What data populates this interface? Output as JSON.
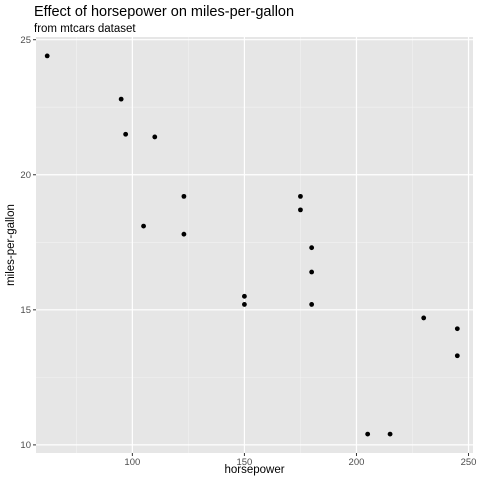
{
  "chart_data": {
    "type": "scatter",
    "title": "Effect of horsepower on miles-per-gallon",
    "subtitle": "from mtcars dataset",
    "xlabel": "horsepower",
    "ylabel": "miles-per-gallon",
    "xlim": [
      57,
      252
    ],
    "ylim": [
      9.7,
      25.1
    ],
    "xticks": [
      100,
      150,
      200,
      250
    ],
    "xminor": [
      75,
      125,
      175,
      225
    ],
    "yticks": [
      10,
      15,
      20,
      25
    ],
    "yminor": [
      12.5,
      17.5,
      22.5
    ],
    "grid": true,
    "panel_color": "#e6e6e6",
    "point_color": "#000000",
    "points": [
      {
        "x": 62,
        "y": 24.4
      },
      {
        "x": 95,
        "y": 22.8
      },
      {
        "x": 97,
        "y": 21.5
      },
      {
        "x": 110,
        "y": 21.4
      },
      {
        "x": 123,
        "y": 19.2
      },
      {
        "x": 105,
        "y": 18.1
      },
      {
        "x": 123,
        "y": 17.8
      },
      {
        "x": 175,
        "y": 19.2
      },
      {
        "x": 175,
        "y": 18.7
      },
      {
        "x": 180,
        "y": 17.3
      },
      {
        "x": 180,
        "y": 16.4
      },
      {
        "x": 150,
        "y": 15.5
      },
      {
        "x": 150,
        "y": 15.2
      },
      {
        "x": 180,
        "y": 15.2
      },
      {
        "x": 230,
        "y": 14.7
      },
      {
        "x": 245,
        "y": 14.3
      },
      {
        "x": 245,
        "y": 13.3
      },
      {
        "x": 205,
        "y": 10.4
      },
      {
        "x": 215,
        "y": 10.4
      }
    ]
  }
}
